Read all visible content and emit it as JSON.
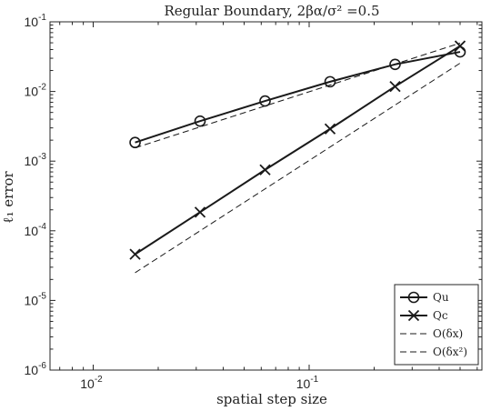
{
  "chart_data": {
    "type": "line",
    "title": "Regular Boundary, 2βα/σ² =0.5",
    "xlabel": "spatial step size",
    "ylabel": "ℓ₁ error",
    "x_scale": "log",
    "y_scale": "log",
    "xlim": [
      0.00631,
      0.631
    ],
    "ylim": [
      1e-06,
      0.1
    ],
    "grid": false,
    "legend_position": "bottom-right",
    "x_ticks": [
      {
        "value": 0.01,
        "base": "10",
        "exp": "-2"
      },
      {
        "value": 0.1,
        "base": "10",
        "exp": "-1"
      }
    ],
    "y_ticks": [
      {
        "value": 1e-06,
        "base": "10",
        "exp": "-6"
      },
      {
        "value": 1e-05,
        "base": "10",
        "exp": "-5"
      },
      {
        "value": 0.0001,
        "base": "10",
        "exp": "-4"
      },
      {
        "value": 0.001,
        "base": "10",
        "exp": "-3"
      },
      {
        "value": 0.01,
        "base": "10",
        "exp": "-2"
      },
      {
        "value": 0.1,
        "base": "10",
        "exp": "-1"
      }
    ],
    "series": [
      {
        "name": "Qu",
        "marker": "circle",
        "style": "solid",
        "color": "#1a1a1a",
        "x": [
          0.01563,
          0.03125,
          0.0625,
          0.125,
          0.25,
          0.5
        ],
        "y": [
          0.00185,
          0.00375,
          0.0073,
          0.0138,
          0.0245,
          0.037
        ]
      },
      {
        "name": "Qc",
        "marker": "x",
        "style": "solid",
        "color": "#1a1a1a",
        "x": [
          0.01563,
          0.03125,
          0.0625,
          0.125,
          0.25,
          0.5
        ],
        "y": [
          4.6e-05,
          0.000185,
          0.00075,
          0.0029,
          0.0118,
          0.045
        ]
      },
      {
        "name": "O(δx)",
        "marker": "none",
        "style": "dashed",
        "color": "#1a1a1a",
        "x": [
          0.01563,
          0.5
        ],
        "y": [
          0.00155,
          0.0495
        ]
      },
      {
        "name": "O(δx²)",
        "marker": "none",
        "style": "dashed",
        "color": "#1a1a1a",
        "x": [
          0.01563,
          0.5
        ],
        "y": [
          2.5e-05,
          0.0255
        ]
      }
    ]
  }
}
